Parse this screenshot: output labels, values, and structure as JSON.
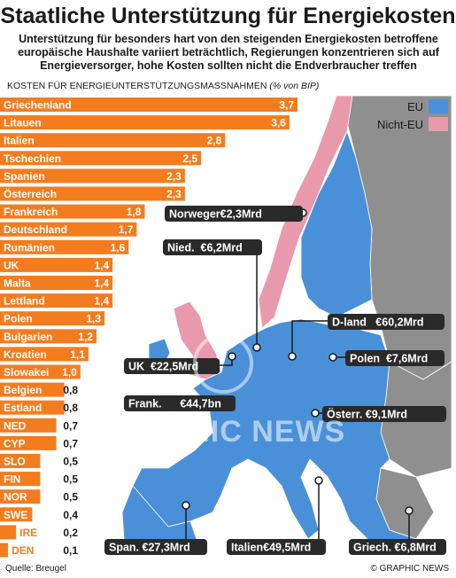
{
  "title": "Staatliche Unterstützung für Energiekosten",
  "subtitle": "Unterstützung für besonders hart von den steigenden Energiekosten betroffene europäische Haushalte variiert beträchtlich, Regierungen konzentrieren sich auf Energieversorger,  hohe Kosten sollten nicht die Endverbraucher treffen",
  "chart_heading": "KOSTEN FÜR ENERGIEUNTERSTÜTZUNGSMASSNAHMEN",
  "chart_unit": "(% von BIP)",
  "source": "Quelle: Breugel",
  "credit": "© GRAPHIC NEWS",
  "watermark": "GRAPHIC NEWS",
  "colors": {
    "bar": "#f37c1f",
    "eu": "#4a90d9",
    "non_eu": "#e89aac",
    "other_land": "#8f8f8f",
    "sea": "#ffffff",
    "callout_bg": "#2a2a2a",
    "callout_text": "#ffffff"
  },
  "chart_data": {
    "type": "bar",
    "orientation": "horizontal",
    "categories": [
      "Griechenland",
      "Litauen",
      "Italien",
      "Tschechien",
      "Spanien",
      "Österreich",
      "Frankreich",
      "Deutschland",
      "Rumänien",
      "UK",
      "Malta",
      "Lettland",
      "Polen",
      "Bulgarien",
      "Kroatien",
      "Slowakei",
      "Belgien",
      "Estland",
      "NED",
      "CYP",
      "SLO",
      "FIN",
      "NOR",
      "SWE",
      "IRE",
      "DEN"
    ],
    "values": [
      3.7,
      3.6,
      2.8,
      2.5,
      2.3,
      2.3,
      1.8,
      1.7,
      1.6,
      1.4,
      1.4,
      1.4,
      1.3,
      1.2,
      1.1,
      1.0,
      0.8,
      0.8,
      0.7,
      0.7,
      0.5,
      0.5,
      0.5,
      0.4,
      0.2,
      0.1
    ],
    "value_labels": [
      "3,7",
      "3,6",
      "2,8",
      "2,5",
      "2,3",
      "2,3",
      "1,8",
      "1,7",
      "1,6",
      "1,4",
      "1,4",
      "1,4",
      "1,3",
      "1,2",
      "1,1",
      "1,0",
      "0,8",
      "0,8",
      "0,7",
      "0,7",
      "0,5",
      "0,5",
      "0,5",
      "0,4",
      "0,2",
      "0,1"
    ],
    "xlim": [
      0,
      3.7
    ],
    "grid": false
  },
  "legend": [
    {
      "label": "EU",
      "color_key": "eu"
    },
    {
      "label": "Nicht-EU",
      "color_key": "non_eu"
    }
  ],
  "callouts": [
    {
      "id": "norwegen",
      "text": "Norweger€2,3Mrd"
    },
    {
      "id": "niederlande",
      "text": "Nied.  €6,2Mrd"
    },
    {
      "id": "deutschland",
      "text": "D-land   €60,2Mrd"
    },
    {
      "id": "polen",
      "text": "Polen  €7,6Mrd"
    },
    {
      "id": "uk",
      "text": "UK  €22,5Mrd"
    },
    {
      "id": "frankreich",
      "text": "Frank.      €44,7bn"
    },
    {
      "id": "oesterreich",
      "text": "Österr. €9,1Mrd"
    },
    {
      "id": "spanien",
      "text": "Span. €27,3Mrd"
    },
    {
      "id": "italien",
      "text": "Italien€49,5Mrd"
    },
    {
      "id": "griechenland",
      "text": "Griech. €6,8Mrd"
    }
  ]
}
